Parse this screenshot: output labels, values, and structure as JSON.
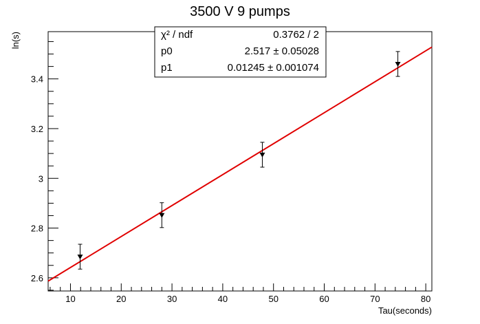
{
  "chart_data": {
    "type": "scatter",
    "title": "3500 V 9 pumps",
    "xlabel": "Tau(seconds)",
    "ylabel": "ln(s)",
    "xlim": [
      5.6,
      81.2
    ],
    "ylim": [
      2.547,
      3.59
    ],
    "grid": false,
    "x_ticks": [
      10,
      20,
      30,
      40,
      50,
      60,
      70,
      80
    ],
    "x_tick_labels": [
      "10",
      "20",
      "30",
      "40",
      "50",
      "60",
      "70",
      "80"
    ],
    "y_ticks": [
      2.6,
      2.8,
      3.0,
      3.2,
      3.4
    ],
    "y_tick_labels": [
      "2.6",
      "2.8",
      "3",
      "3.2",
      "3.4"
    ],
    "points": [
      {
        "x": 11.9,
        "y": 2.685,
        "err": 0.05
      },
      {
        "x": 28.0,
        "y": 2.852,
        "err": 0.05
      },
      {
        "x": 47.8,
        "y": 3.095,
        "err": 0.05
      },
      {
        "x": 74.5,
        "y": 3.46,
        "err": 0.05
      }
    ],
    "fit": {
      "p0": 2.517,
      "p1": 0.01245,
      "x_range": [
        5.6,
        81.2
      ],
      "color": "#e00000"
    },
    "marker_color": "#000000",
    "stats": {
      "rows": [
        {
          "label": "χ² / ndf",
          "value": "0.3762 / 2"
        },
        {
          "label": "p0",
          "value": "2.517 ± 0.05028"
        },
        {
          "label": "p1",
          "value": "0.01245 ± 0.001074"
        }
      ]
    }
  }
}
